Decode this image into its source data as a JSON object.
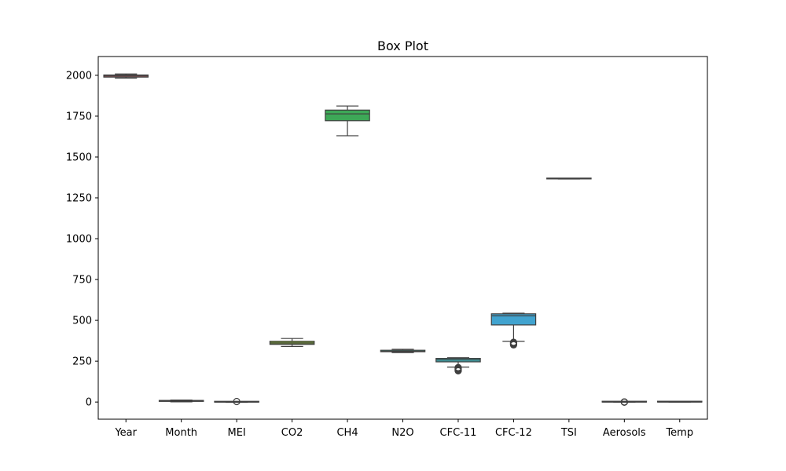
{
  "chart_data": {
    "type": "box",
    "title": "Box Plot",
    "xlabel": "",
    "ylabel": "",
    "ylim": [
      -105,
      2115
    ],
    "yticks": [
      0,
      250,
      500,
      750,
      1000,
      1250,
      1500,
      1750,
      2000
    ],
    "grid": false,
    "categories": [
      "Year",
      "Month",
      "MEI",
      "CO2",
      "CH4",
      "N2O",
      "CFC-11",
      "CFC-12",
      "TSI",
      "Aerosols",
      "Temp"
    ],
    "boxes": [
      {
        "name": "Year",
        "color": "#dd6e72",
        "whisker_low": 1983,
        "q1": 1989,
        "median": 1996,
        "q3": 2002,
        "whisker_high": 2008,
        "outliers": []
      },
      {
        "name": "Month",
        "color": "#c5923e",
        "whisker_low": 1,
        "q1": 4,
        "median": 7,
        "q3": 10,
        "whisker_high": 12,
        "outliers": []
      },
      {
        "name": "MEI",
        "color": "#a5a33c",
        "whisker_low": -1.6,
        "q1": -0.4,
        "median": 0.2,
        "q3": 0.8,
        "whisker_high": 2.5,
        "outliers": [
          3.0
        ]
      },
      {
        "name": "CO2",
        "color": "#7ea337",
        "whisker_low": 340,
        "q1": 353,
        "median": 361,
        "q3": 372,
        "whisker_high": 389,
        "outliers": []
      },
      {
        "name": "CH4",
        "color": "#3da857",
        "whisker_low": 1630,
        "q1": 1722,
        "median": 1764,
        "q3": 1787,
        "whisker_high": 1812,
        "outliers": []
      },
      {
        "name": "N2O",
        "color": "#39a693",
        "whisker_low": 303,
        "q1": 308,
        "median": 311,
        "q3": 317,
        "whisker_high": 323,
        "outliers": []
      },
      {
        "name": "CFC-11",
        "color": "#3fa3a9",
        "whisker_low": 214,
        "q1": 246,
        "median": 258,
        "q3": 267,
        "whisker_high": 271,
        "outliers": [
          191,
          195,
          199,
          203,
          207,
          211
        ]
      },
      {
        "name": "CFC-12",
        "color": "#41a3cf",
        "whisker_low": 372,
        "q1": 472,
        "median": 528,
        "q3": 540,
        "whisker_high": 544,
        "outliers": [
          350,
          354,
          358,
          362,
          366
        ]
      },
      {
        "name": "TSI",
        "color": "#8fa2e0",
        "whisker_low": 1365.5,
        "q1": 1365.9,
        "median": 1366.1,
        "q3": 1366.3,
        "whisker_high": 1366.8,
        "outliers": []
      },
      {
        "name": "Aerosols",
        "color": "#c889d8",
        "whisker_low": 0.0,
        "q1": 0.003,
        "median": 0.006,
        "q3": 0.013,
        "whisker_high": 0.028,
        "outliers": [
          0.04,
          0.08,
          0.12,
          0.15
        ]
      },
      {
        "name": "Temp",
        "color": "#dd7aa8",
        "whisker_low": -0.28,
        "q1": 0.12,
        "median": 0.25,
        "q3": 0.4,
        "whisker_high": 0.74,
        "outliers": []
      }
    ]
  }
}
